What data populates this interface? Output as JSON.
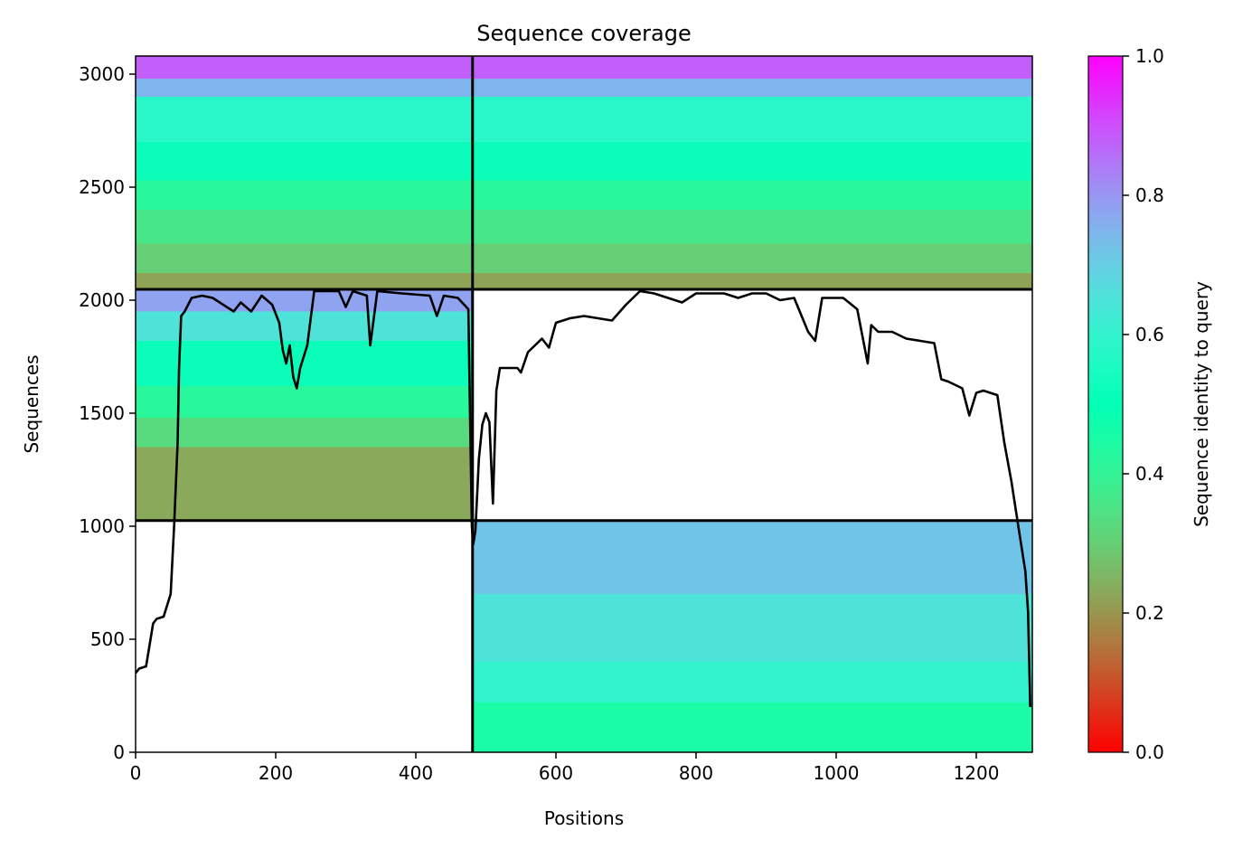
{
  "chart_data": {
    "type": "heatmap",
    "title": "Sequence coverage",
    "xlabel": "Positions",
    "ylabel": "Sequences",
    "xlim": [
      0,
      1280
    ],
    "ylim": [
      0,
      3080
    ],
    "xticks": [
      0,
      200,
      400,
      600,
      800,
      1000,
      1200
    ],
    "yticks": [
      0,
      500,
      1000,
      1500,
      2000,
      2500,
      3000
    ],
    "colorbar": {
      "label": "Sequence identity to query",
      "range": [
        0,
        1
      ],
      "ticks": [
        "0.0",
        "0.2",
        "0.4",
        "0.6",
        "0.8",
        "1.0"
      ],
      "colormap": "rainbow_r"
    },
    "divider_x": 481,
    "divider_y": [
      1025,
      2048
    ],
    "blocks": [
      {
        "name": "bottom-right",
        "x_range": [
          481,
          1280
        ],
        "y_range": [
          0,
          1025
        ],
        "identity_bands": [
          {
            "y": [
              0,
              220
            ],
            "identity": 0.45
          },
          {
            "y": [
              220,
              400
            ],
            "identity": 0.6
          },
          {
            "y": [
              400,
              700
            ],
            "identity": 0.65
          },
          {
            "y": [
              700,
              1025
            ],
            "identity": 0.72
          }
        ]
      },
      {
        "name": "middle-left",
        "x_range": [
          0,
          481
        ],
        "y_range": [
          1025,
          2048
        ],
        "identity_bands": [
          {
            "y": [
              1025,
              1350
            ],
            "identity": 0.23
          },
          {
            "y": [
              1350,
              1480
            ],
            "identity": 0.33
          },
          {
            "y": [
              1480,
              1620
            ],
            "identity": 0.42
          },
          {
            "y": [
              1620,
              1820
            ],
            "identity": 0.52
          },
          {
            "y": [
              1820,
              1950
            ],
            "identity": 0.65
          },
          {
            "y": [
              1950,
              2048
            ],
            "identity": 0.78
          }
        ]
      },
      {
        "name": "top-left",
        "x_range": [
          0,
          481
        ],
        "y_range": [
          2048,
          3080
        ],
        "identity_bands": [
          {
            "y": [
              2048,
              2120
            ],
            "identity": 0.22
          },
          {
            "y": [
              2120,
              2250
            ],
            "identity": 0.3
          },
          {
            "y": [
              2250,
              2400
            ],
            "identity": 0.36
          },
          {
            "y": [
              2400,
              2530
            ],
            "identity": 0.42
          },
          {
            "y": [
              2530,
              2700
            ],
            "identity": 0.52
          },
          {
            "y": [
              2700,
              2900
            ],
            "identity": 0.58
          },
          {
            "y": [
              2900,
              2980
            ],
            "identity": 0.75
          },
          {
            "y": [
              2980,
              3080
            ],
            "identity": 0.88
          }
        ]
      },
      {
        "name": "top-right",
        "x_range": [
          481,
          1280
        ],
        "y_range": [
          2048,
          3080
        ],
        "identity_bands": [
          {
            "y": [
              2048,
              2120
            ],
            "identity": 0.22
          },
          {
            "y": [
              2120,
              2250
            ],
            "identity": 0.3
          },
          {
            "y": [
              2250,
              2400
            ],
            "identity": 0.36
          },
          {
            "y": [
              2400,
              2530
            ],
            "identity": 0.42
          },
          {
            "y": [
              2530,
              2700
            ],
            "identity": 0.52
          },
          {
            "y": [
              2700,
              2900
            ],
            "identity": 0.58
          },
          {
            "y": [
              2900,
              2980
            ],
            "identity": 0.75
          },
          {
            "y": [
              2980,
              3080
            ],
            "identity": 0.88
          }
        ]
      }
    ],
    "coverage_line": {
      "name": "coverage",
      "x": [
        0,
        5,
        15,
        25,
        30,
        40,
        50,
        55,
        60,
        62,
        65,
        70,
        80,
        95,
        110,
        140,
        150,
        165,
        180,
        195,
        205,
        210,
        215,
        220,
        225,
        230,
        235,
        245,
        255,
        270,
        290,
        300,
        310,
        330,
        335,
        345,
        380,
        420,
        430,
        440,
        460,
        475,
        480,
        482,
        485,
        490,
        495,
        500,
        505,
        510,
        515,
        520,
        530,
        545,
        550,
        560,
        570,
        580,
        590,
        600,
        620,
        640,
        660,
        680,
        700,
        720,
        740,
        760,
        780,
        800,
        820,
        840,
        860,
        880,
        900,
        920,
        940,
        960,
        970,
        980,
        990,
        1010,
        1030,
        1045,
        1050,
        1060,
        1080,
        1100,
        1120,
        1140,
        1150,
        1160,
        1180,
        1190,
        1200,
        1210,
        1230,
        1240,
        1250,
        1260,
        1265,
        1270,
        1274,
        1277
      ],
      "y": [
        350,
        370,
        380,
        570,
        590,
        600,
        700,
        1000,
        1370,
        1700,
        1930,
        1950,
        2010,
        2020,
        2010,
        1950,
        1990,
        1950,
        2020,
        1980,
        1900,
        1780,
        1720,
        1800,
        1660,
        1610,
        1700,
        1800,
        2040,
        2040,
        2040,
        1970,
        2040,
        2020,
        1800,
        2040,
        2030,
        2020,
        1930,
        2020,
        2010,
        1960,
        1000,
        920,
        980,
        1300,
        1450,
        1500,
        1460,
        1100,
        1600,
        1700,
        1700,
        1700,
        1680,
        1770,
        1800,
        1830,
        1790,
        1900,
        1920,
        1930,
        1920,
        1910,
        1980,
        2040,
        2030,
        2010,
        1990,
        2030,
        2030,
        2030,
        2010,
        2030,
        2030,
        2000,
        2010,
        1860,
        1820,
        2010,
        2010,
        2010,
        1960,
        1720,
        1890,
        1860,
        1860,
        1830,
        1820,
        1810,
        1650,
        1640,
        1610,
        1490,
        1590,
        1600,
        1580,
        1370,
        1200,
        1000,
        900,
        800,
        620,
        200
      ]
    }
  }
}
